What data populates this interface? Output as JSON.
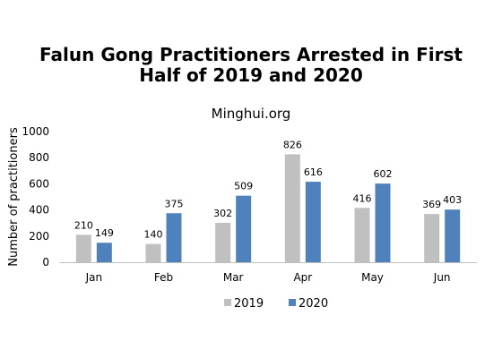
{
  "chart_data": {
    "type": "bar",
    "title_lines": [
      "Falun Gong Practitioners Arrested in First",
      "Half of 2019 and 2020"
    ],
    "subtitle": "Minghui.org",
    "xlabel": "",
    "ylabel": "Number of practitioners",
    "categories": [
      "Jan",
      "Feb",
      "Mar",
      "Apr",
      "May",
      "Jun"
    ],
    "yticks": [
      "0",
      "200",
      "400",
      "600",
      "800",
      "1000"
    ],
    "ylim": [
      0,
      1000
    ],
    "series": [
      {
        "name": "2019",
        "color": "#c0c0c0",
        "values": [
          210,
          140,
          302,
          826,
          416,
          369
        ],
        "labels": [
          "210",
          "140",
          "302",
          "826",
          "416",
          "369"
        ]
      },
      {
        "name": "2020",
        "color": "#4f81bd",
        "values": [
          149,
          375,
          509,
          616,
          602,
          403
        ],
        "labels": [
          "149",
          "375",
          "509",
          "616",
          "602",
          "403"
        ]
      }
    ],
    "grid": false,
    "legend_position": "bottom"
  }
}
